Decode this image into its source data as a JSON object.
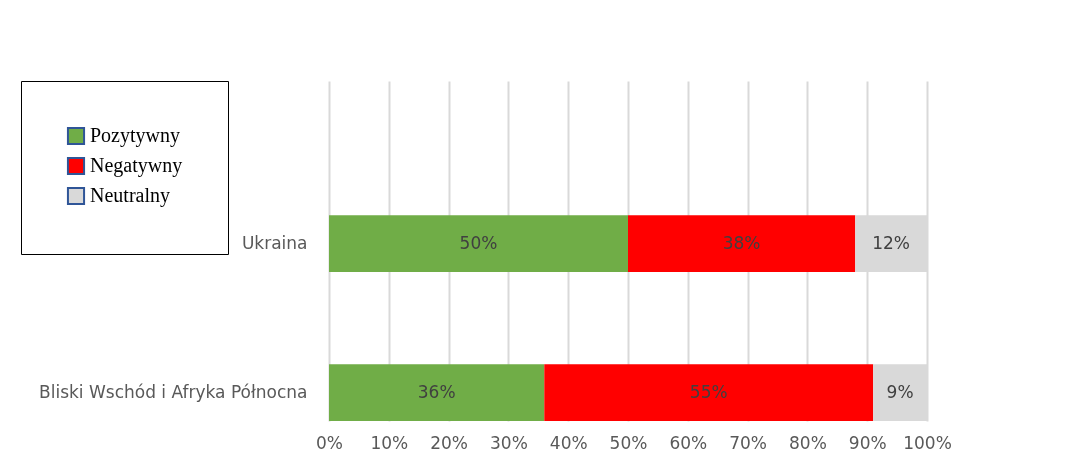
{
  "chart_data": {
    "type": "bar",
    "orientation": "horizontal",
    "stacked": true,
    "grid": "x",
    "legend": "top left",
    "categories": [
      "Ukraina",
      "Bliski Wschód i Afryka Północna"
    ],
    "series": [
      {
        "name": "Pozytywny",
        "color": "#70ad47",
        "values": [
          50,
          36
        ],
        "value_labels": [
          "50%",
          "36%"
        ]
      },
      {
        "name": "Negatywny",
        "color": "#ff0000",
        "values": [
          38,
          55
        ],
        "value_labels": [
          "38%",
          "55%"
        ]
      },
      {
        "name": "Neutralny",
        "color": "#d9d9d9",
        "values": [
          12,
          9
        ],
        "value_labels": [
          "12%",
          "9%"
        ]
      }
    ],
    "xlim": [
      0,
      100
    ],
    "xticks": [
      {
        "value": 0,
        "label": "0%"
      },
      {
        "value": 10,
        "label": "10%"
      },
      {
        "value": 20,
        "label": "20%"
      },
      {
        "value": 30,
        "label": "30%"
      },
      {
        "value": 40,
        "label": "40%"
      },
      {
        "value": 50,
        "label": "50%"
      },
      {
        "value": 60,
        "label": "60%"
      },
      {
        "value": 70,
        "label": "70%"
      },
      {
        "value": 80,
        "label": "80%"
      },
      {
        "value": 90,
        "label": "90%"
      },
      {
        "value": 100,
        "label": "100%"
      }
    ]
  }
}
